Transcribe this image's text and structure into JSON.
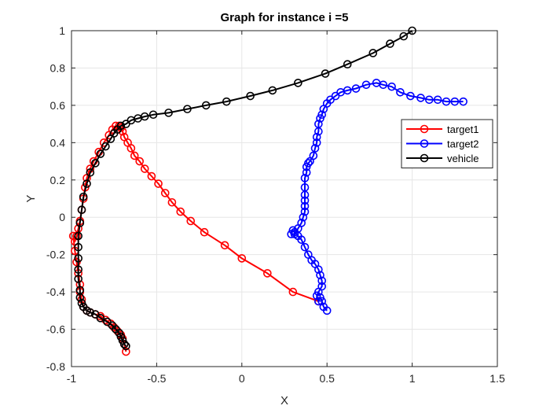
{
  "chart_data": {
    "type": "line",
    "title": "Graph for instance i =5",
    "xlabel": "X",
    "ylabel": "Y",
    "xlim": [
      -1,
      1.5
    ],
    "ylim": [
      -0.8,
      1
    ],
    "xticks": [
      -1,
      -0.5,
      0,
      0.5,
      1,
      1.5
    ],
    "xtick_labels": [
      "-1",
      "-0.5",
      "0",
      "0.5",
      "1",
      "1.5"
    ],
    "yticks": [
      -0.8,
      -0.6,
      -0.4,
      -0.2,
      0,
      0.2,
      0.4,
      0.6,
      0.8,
      1
    ],
    "ytick_labels": [
      "-0.8",
      "-0.6",
      "-0.4",
      "-0.2",
      "0",
      "0.2",
      "0.4",
      "0.6",
      "0.8",
      "1"
    ],
    "grid": true,
    "legend_position": "right",
    "marker": "circle-open",
    "series": [
      {
        "name": "target1",
        "color": "#ff0000",
        "x": [
          0.45,
          0.3,
          0.15,
          0.0,
          -0.1,
          -0.22,
          -0.3,
          -0.36,
          -0.41,
          -0.45,
          -0.49,
          -0.53,
          -0.57,
          -0.6,
          -0.63,
          -0.65,
          -0.67,
          -0.69,
          -0.7,
          -0.71,
          -0.72,
          -0.74,
          -0.76,
          -0.78,
          -0.81,
          -0.84,
          -0.87,
          -0.89,
          -0.91,
          -0.92,
          -0.93,
          -0.94,
          -0.95,
          -0.96,
          -0.97,
          -0.98,
          -0.99,
          -0.98,
          -0.97,
          -0.96,
          -0.95,
          -0.95,
          -0.94,
          -0.93,
          -0.91,
          -0.89,
          -0.86,
          -0.83,
          -0.8,
          -0.77,
          -0.75,
          -0.73,
          -0.71,
          -0.7,
          -0.69,
          -0.68
        ],
        "y": [
          -0.45,
          -0.4,
          -0.3,
          -0.22,
          -0.15,
          -0.08,
          -0.02,
          0.03,
          0.08,
          0.13,
          0.18,
          0.22,
          0.26,
          0.3,
          0.33,
          0.37,
          0.4,
          0.43,
          0.46,
          0.48,
          0.49,
          0.49,
          0.47,
          0.44,
          0.4,
          0.35,
          0.3,
          0.26,
          0.21,
          0.16,
          0.1,
          0.04,
          -0.02,
          -0.06,
          -0.1,
          -0.13,
          -0.1,
          -0.18,
          -0.24,
          -0.3,
          -0.36,
          -0.4,
          -0.44,
          -0.48,
          -0.5,
          -0.51,
          -0.52,
          -0.53,
          -0.55,
          -0.57,
          -0.59,
          -0.61,
          -0.63,
          -0.65,
          -0.68,
          -0.72
        ]
      },
      {
        "name": "target2",
        "color": "#0000ff",
        "x": [
          0.5,
          0.48,
          0.47,
          0.46,
          0.45,
          0.44,
          0.45,
          0.47,
          0.47,
          0.46,
          0.45,
          0.43,
          0.41,
          0.39,
          0.37,
          0.35,
          0.33,
          0.31,
          0.3,
          0.29,
          0.31,
          0.33,
          0.35,
          0.36,
          0.37,
          0.37,
          0.37,
          0.37,
          0.37,
          0.37,
          0.38,
          0.38,
          0.39,
          0.4,
          0.42,
          0.43,
          0.44,
          0.44,
          0.45,
          0.45,
          0.46,
          0.47,
          0.48,
          0.5,
          0.52,
          0.55,
          0.58,
          0.62,
          0.67,
          0.73,
          0.79,
          0.83,
          0.88,
          0.93,
          0.99,
          1.05,
          1.1,
          1.15,
          1.2,
          1.25,
          1.3
        ],
        "y": [
          -0.5,
          -0.48,
          -0.45,
          -0.43,
          -0.45,
          -0.42,
          -0.4,
          -0.37,
          -0.34,
          -0.31,
          -0.28,
          -0.25,
          -0.23,
          -0.2,
          -0.16,
          -0.12,
          -0.1,
          -0.08,
          -0.07,
          -0.09,
          -0.09,
          -0.06,
          -0.03,
          0.0,
          0.03,
          0.06,
          0.09,
          0.12,
          0.16,
          0.21,
          0.24,
          0.27,
          0.29,
          0.3,
          0.33,
          0.37,
          0.4,
          0.43,
          0.46,
          0.5,
          0.53,
          0.55,
          0.58,
          0.61,
          0.63,
          0.65,
          0.67,
          0.68,
          0.69,
          0.71,
          0.72,
          0.71,
          0.7,
          0.67,
          0.65,
          0.64,
          0.63,
          0.63,
          0.62,
          0.62,
          0.62
        ]
      },
      {
        "name": "vehicle",
        "color": "#000000",
        "x": [
          1.0,
          0.95,
          0.87,
          0.77,
          0.62,
          0.49,
          0.33,
          0.18,
          0.05,
          -0.09,
          -0.21,
          -0.32,
          -0.43,
          -0.52,
          -0.57,
          -0.61,
          -0.65,
          -0.68,
          -0.71,
          -0.73,
          -0.75,
          -0.77,
          -0.8,
          -0.83,
          -0.86,
          -0.89,
          -0.91,
          -0.93,
          -0.94,
          -0.95,
          -0.96,
          -0.96,
          -0.96,
          -0.96,
          -0.96,
          -0.95,
          -0.95,
          -0.94,
          -0.93,
          -0.91,
          -0.89,
          -0.86,
          -0.83,
          -0.79,
          -0.76,
          -0.74,
          -0.72,
          -0.71,
          -0.7,
          -0.69,
          -0.68
        ],
        "y": [
          1.0,
          0.97,
          0.93,
          0.88,
          0.82,
          0.77,
          0.72,
          0.68,
          0.65,
          0.62,
          0.6,
          0.58,
          0.56,
          0.55,
          0.54,
          0.53,
          0.52,
          0.5,
          0.49,
          0.47,
          0.45,
          0.42,
          0.38,
          0.34,
          0.29,
          0.24,
          0.18,
          0.11,
          0.04,
          -0.03,
          -0.1,
          -0.16,
          -0.22,
          -0.28,
          -0.33,
          -0.39,
          -0.43,
          -0.46,
          -0.48,
          -0.5,
          -0.51,
          -0.52,
          -0.54,
          -0.56,
          -0.58,
          -0.6,
          -0.62,
          -0.64,
          -0.66,
          -0.68,
          -0.69
        ]
      }
    ]
  }
}
